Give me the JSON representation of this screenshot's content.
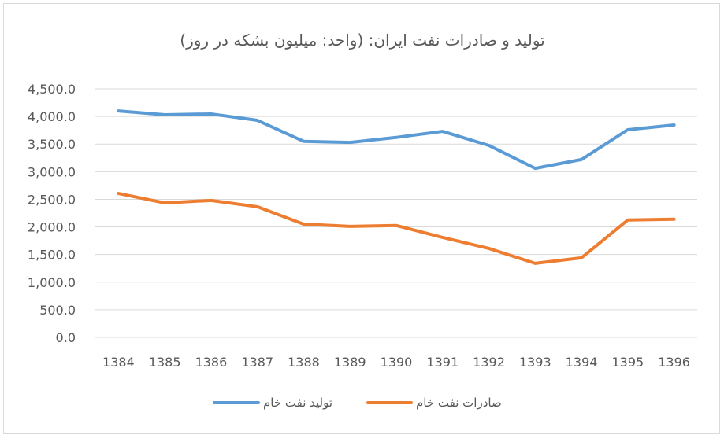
{
  "chart_data": {
    "type": "line",
    "title": "تولید و صادرات نفت ایران: (واحد: میلیون بشکه در روز)",
    "xlabel": "",
    "ylabel": "",
    "categories": [
      "1384",
      "1385",
      "1386",
      "1387",
      "1388",
      "1389",
      "1390",
      "1391",
      "1392",
      "1393",
      "1394",
      "1395",
      "1396"
    ],
    "ylim": [
      0,
      4500
    ],
    "yticks": [
      "0.0",
      "500.0",
      "1,000.0",
      "1,500.0",
      "2,000.0",
      "2,500.0",
      "3,000.0",
      "3,500.0",
      "4,000.0",
      "4,500.0"
    ],
    "grid": true,
    "legend_position": "bottom",
    "series": [
      {
        "name": "تولید نفت خام",
        "color": "#5b9bd5",
        "values": [
          4100,
          4030,
          4045,
          3930,
          3550,
          3530,
          3620,
          3730,
          3475,
          3060,
          3220,
          3760,
          3845
        ]
      },
      {
        "name": "صادرات نفت خام",
        "color": "#ed7d31",
        "values": [
          2605,
          2435,
          2480,
          2365,
          2050,
          2010,
          2025,
          1810,
          1610,
          1340,
          1440,
          2125,
          2140
        ]
      }
    ]
  }
}
